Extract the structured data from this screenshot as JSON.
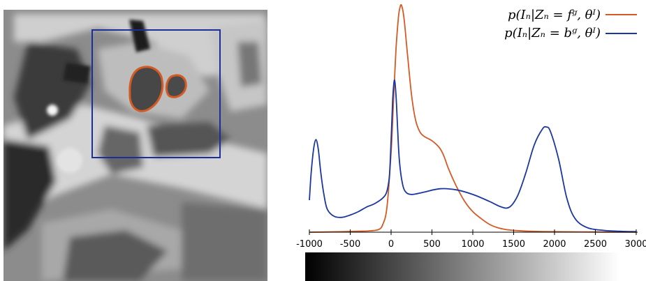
{
  "colors": {
    "foreground": "#d45a24",
    "background": "#1a36a0",
    "roi_box": "#1a2f9a",
    "axis": "#000000"
  },
  "image_panel": {
    "contour_color": "#d45a24",
    "box_color": "#1a2f9a"
  },
  "chart_data": {
    "type": "line",
    "title": "",
    "xlabel": "",
    "ylabel": "",
    "xlim": [
      -1050,
      3050
    ],
    "xticks": [
      "-1000",
      "-500",
      "0",
      "500",
      "1000",
      "1500",
      "2000",
      "2500",
      "3000"
    ],
    "xtick_values": [
      -1000,
      -500,
      0,
      500,
      1000,
      1500,
      2000,
      2500,
      3000
    ],
    "colorbar": {
      "from": -1000,
      "to": 2850,
      "colors": [
        "#000000",
        "#ffffff"
      ]
    },
    "legend": {
      "position": "top-right"
    },
    "series": [
      {
        "name": "p(I_n|Z_n = f_g, θ_I)",
        "legend_text": "p(Iₙ|Zₙ = fᵍ, θᴵ)",
        "color": "#d45a24",
        "points": [
          [
            -1000,
            0.0
          ],
          [
            -600,
            0.002
          ],
          [
            -400,
            0.004
          ],
          [
            -250,
            0.006
          ],
          [
            -150,
            0.012
          ],
          [
            -100,
            0.035
          ],
          [
            -50,
            0.11
          ],
          [
            0,
            0.35
          ],
          [
            30,
            0.58
          ],
          [
            60,
            0.8
          ],
          [
            90,
            0.94
          ],
          [
            110,
            0.985
          ],
          [
            130,
            0.99
          ],
          [
            160,
            0.93
          ],
          [
            200,
            0.78
          ],
          [
            250,
            0.6
          ],
          [
            300,
            0.49
          ],
          [
            350,
            0.44
          ],
          [
            400,
            0.42
          ],
          [
            450,
            0.41
          ],
          [
            500,
            0.4
          ],
          [
            550,
            0.385
          ],
          [
            600,
            0.365
          ],
          [
            650,
            0.33
          ],
          [
            700,
            0.28
          ],
          [
            800,
            0.2
          ],
          [
            900,
            0.135
          ],
          [
            1000,
            0.09
          ],
          [
            1100,
            0.06
          ],
          [
            1200,
            0.035
          ],
          [
            1300,
            0.02
          ],
          [
            1400,
            0.012
          ],
          [
            1500,
            0.008
          ],
          [
            1700,
            0.004
          ],
          [
            2000,
            0.002
          ],
          [
            2500,
            0.001
          ],
          [
            3000,
            0.0
          ]
        ]
      },
      {
        "name": "p(I_n|Z_n = b_g, θ_I)",
        "legend_text": "p(Iₙ|Zₙ = bᵍ, θᴵ)",
        "color": "#1a36a0",
        "points": [
          [
            -1000,
            0.14
          ],
          [
            -980,
            0.25
          ],
          [
            -950,
            0.36
          ],
          [
            -920,
            0.405
          ],
          [
            -890,
            0.36
          ],
          [
            -860,
            0.26
          ],
          [
            -820,
            0.16
          ],
          [
            -780,
            0.1
          ],
          [
            -700,
            0.07
          ],
          [
            -600,
            0.065
          ],
          [
            -500,
            0.075
          ],
          [
            -400,
            0.09
          ],
          [
            -300,
            0.11
          ],
          [
            -200,
            0.125
          ],
          [
            -100,
            0.15
          ],
          [
            -50,
            0.18
          ],
          [
            -20,
            0.25
          ],
          [
            0,
            0.4
          ],
          [
            20,
            0.58
          ],
          [
            40,
            0.665
          ],
          [
            60,
            0.6
          ],
          [
            80,
            0.45
          ],
          [
            100,
            0.32
          ],
          [
            130,
            0.23
          ],
          [
            170,
            0.18
          ],
          [
            250,
            0.165
          ],
          [
            400,
            0.175
          ],
          [
            600,
            0.19
          ],
          [
            800,
            0.185
          ],
          [
            1000,
            0.165
          ],
          [
            1200,
            0.135
          ],
          [
            1350,
            0.11
          ],
          [
            1450,
            0.11
          ],
          [
            1550,
            0.16
          ],
          [
            1650,
            0.26
          ],
          [
            1750,
            0.38
          ],
          [
            1850,
            0.45
          ],
          [
            1900,
            0.46
          ],
          [
            1950,
            0.44
          ],
          [
            2050,
            0.32
          ],
          [
            2150,
            0.15
          ],
          [
            2250,
            0.06
          ],
          [
            2400,
            0.02
          ],
          [
            2600,
            0.008
          ],
          [
            2800,
            0.004
          ],
          [
            3000,
            0.002
          ]
        ]
      }
    ]
  }
}
